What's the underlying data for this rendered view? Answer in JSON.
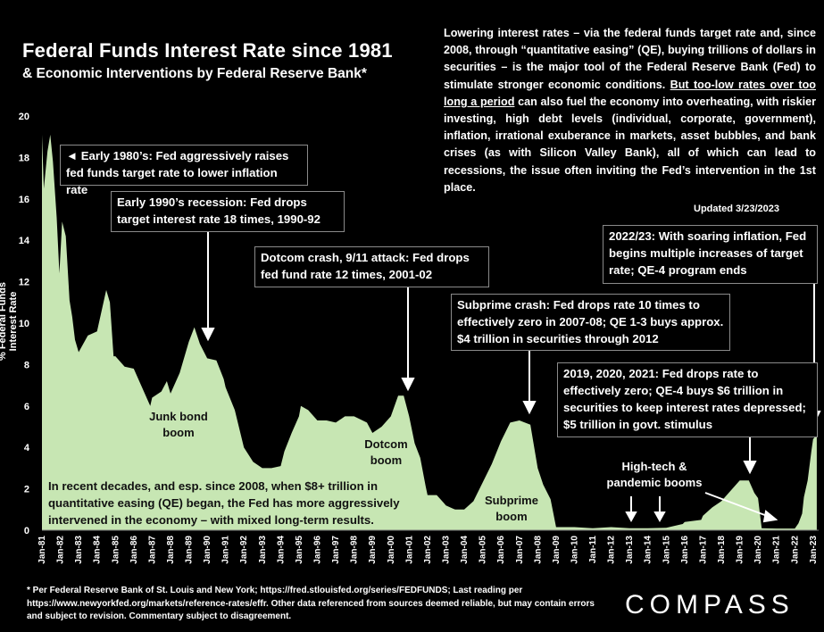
{
  "title": "Federal Funds Interest Rate since 1981",
  "subtitle": "& Economic Interventions by Federal Reserve Bank*",
  "description": {
    "part1": "Lowering interest rates – via the federal funds target rate and, since 2008, through “quantitative easing” (QE), buying trillions of dollars in securities – is the major tool of the Federal Reserve Bank (Fed) to stimulate stronger economic conditions. ",
    "underlined": "But too-low rates over too long a period",
    "part2": " can also fuel the economy into overheating, with riskier investing, high debt levels (individual, corporate, government), inflation, irrational exuberance in markets, asset bubbles, and bank crises (as with Silicon Valley Bank), all of which can lead to recessions, the issue often inviting the Fed’s intervention in the 1st place."
  },
  "updated": "Updated 3/23/2023",
  "annotations": {
    "early80s": "◄ Early 1980’s: Fed aggressively raises fed funds target rate to lower inflation rate",
    "early90s": "Early 1990’s recession: Fed drops target interest rate 18 times, 1990-92",
    "dotcom": "Dotcom crash, 9/11 attack: Fed drops fed fund rate 12 times, 2001-02",
    "subprime": "Subprime crash: Fed drops rate 10 times to effectively zero in 2007-08; QE 1-3 buys approx. $4 trillion in securities through 2012",
    "covid": "2019, 2020, 2021: Fed drops rate to effectively zero; QE-4 buys $6 trillion in securities to keep interest rates depressed; $5 trillion in govt. stimulus",
    "y2022": "2022/23: With soaring inflation, Fed begins multiple increases of target rate; QE-4 program ends",
    "recent": "In recent decades, and esp. since 2008, when $8+ trillion in quantitative easing (QE) began, the Fed has more aggressively intervened in the economy – with mixed long-term results."
  },
  "labels": {
    "junk": "Junk bond boom",
    "dotcom": "Dotcom boom",
    "subprime": "Subprime boom",
    "hightech": "High-tech & pandemic booms"
  },
  "footnote": "* Per Federal Reserve Bank of St. Louis and New York; https://fred.stlouisfed.org/series/FEDFUNDS; Last reading per https://www.newyorkfed.org/markets/reference-rates/effr. Other data referenced from sources deemed reliable, but may contain errors and subject to revision. Commentary subject to disagreement.",
  "logo": "COMPASS",
  "colors": {
    "fill": "#c7e6b3",
    "background": "#000000",
    "text": "#ffffff"
  },
  "chart_data": {
    "type": "area",
    "title": "Federal Funds Interest Rate since 1981",
    "xlabel": "",
    "ylabel": "% Federal Funds Interest Rate",
    "ylim": [
      0,
      20
    ],
    "yticks": [
      "0",
      "2",
      "4",
      "6",
      "8",
      "10",
      "12",
      "14",
      "16",
      "18",
      "20"
    ],
    "xticks": [
      "Jan-81",
      "Jan-82",
      "Jan-83",
      "Jan-84",
      "Jan-85",
      "Jan-86",
      "Jan-87",
      "Jan-88",
      "Jan-89",
      "Jan-90",
      "Jan-91",
      "Jan-92",
      "Jan-93",
      "Jan-94",
      "Jan-95",
      "Jan-96",
      "Jan-97",
      "Jan-98",
      "Jan-99",
      "Jan-00",
      "Jan-01",
      "Jan-02",
      "Jan-03",
      "Jan-04",
      "Jan-05",
      "Jan-06",
      "Jan-07",
      "Jan-08",
      "Jan-09",
      "Jan-10",
      "Jan-11",
      "Jan-12",
      "Jan-13",
      "Jan-14",
      "Jan-15",
      "Jan-16",
      "Jan-17",
      "Jan-18",
      "Jan-19",
      "Jan-20",
      "Jan-21",
      "Jan-22",
      "Jan-23"
    ],
    "series": [
      {
        "name": "Federal Funds Rate",
        "x": [
          1981.0,
          1981.1,
          1981.3,
          1981.45,
          1981.6,
          1981.8,
          1981.95,
          1982.1,
          1982.3,
          1982.5,
          1982.65,
          1982.8,
          1983.0,
          1983.5,
          1984.0,
          1984.5,
          1984.7,
          1984.9,
          1985.0,
          1985.5,
          1986.0,
          1986.5,
          1986.9,
          1987.0,
          1987.5,
          1987.8,
          1988.0,
          1988.5,
          1989.0,
          1989.3,
          1989.6,
          1990.0,
          1990.5,
          1990.9,
          1991.0,
          1991.5,
          1992.0,
          1992.5,
          1993.0,
          1993.5,
          1994.0,
          1994.2,
          1994.6,
          1995.0,
          1995.1,
          1995.5,
          1996.0,
          1996.5,
          1997.0,
          1997.5,
          1998.0,
          1998.7,
          1999.0,
          1999.5,
          2000.0,
          2000.4,
          2000.7,
          2001.0,
          2001.3,
          2001.6,
          2001.9,
          2002.0,
          2002.5,
          2002.9,
          2003.0,
          2003.5,
          2004.0,
          2004.5,
          2005.0,
          2005.5,
          2006.0,
          2006.5,
          2007.0,
          2007.6,
          2008.0,
          2008.3,
          2008.7,
          2009.0,
          2010.0,
          2011.0,
          2012.0,
          2013.0,
          2014.0,
          2015.0,
          2015.9,
          2016.0,
          2016.9,
          2017.0,
          2017.5,
          2018.0,
          2018.5,
          2019.0,
          2019.5,
          2019.8,
          2020.0,
          2020.2,
          2021.0,
          2022.0,
          2022.2,
          2022.4,
          2022.5,
          2022.7,
          2022.9,
          2023.0,
          2023.2
        ],
        "values": [
          19.1,
          16.5,
          18.3,
          19.1,
          17.8,
          15.1,
          12.4,
          14.9,
          14.2,
          11.1,
          10.3,
          9.2,
          8.6,
          9.4,
          9.6,
          11.6,
          11.0,
          8.4,
          8.4,
          7.9,
          7.8,
          6.8,
          6.0,
          6.4,
          6.7,
          7.2,
          6.6,
          7.6,
          9.1,
          9.8,
          9.0,
          8.3,
          8.2,
          7.3,
          6.9,
          5.8,
          4.0,
          3.3,
          3.0,
          3.0,
          3.1,
          3.8,
          4.7,
          5.5,
          6.0,
          5.8,
          5.3,
          5.3,
          5.2,
          5.5,
          5.5,
          5.2,
          4.7,
          5.0,
          5.5,
          6.5,
          6.5,
          5.5,
          4.2,
          3.5,
          2.1,
          1.7,
          1.7,
          1.3,
          1.2,
          1.0,
          1.0,
          1.4,
          2.3,
          3.2,
          4.3,
          5.2,
          5.3,
          5.1,
          3.0,
          2.2,
          1.5,
          0.15,
          0.15,
          0.1,
          0.15,
          0.1,
          0.1,
          0.12,
          0.3,
          0.4,
          0.5,
          0.7,
          1.1,
          1.4,
          1.9,
          2.4,
          2.4,
          1.8,
          1.55,
          0.1,
          0.08,
          0.08,
          0.33,
          0.8,
          1.6,
          2.4,
          3.8,
          4.4,
          4.6
        ]
      }
    ]
  }
}
